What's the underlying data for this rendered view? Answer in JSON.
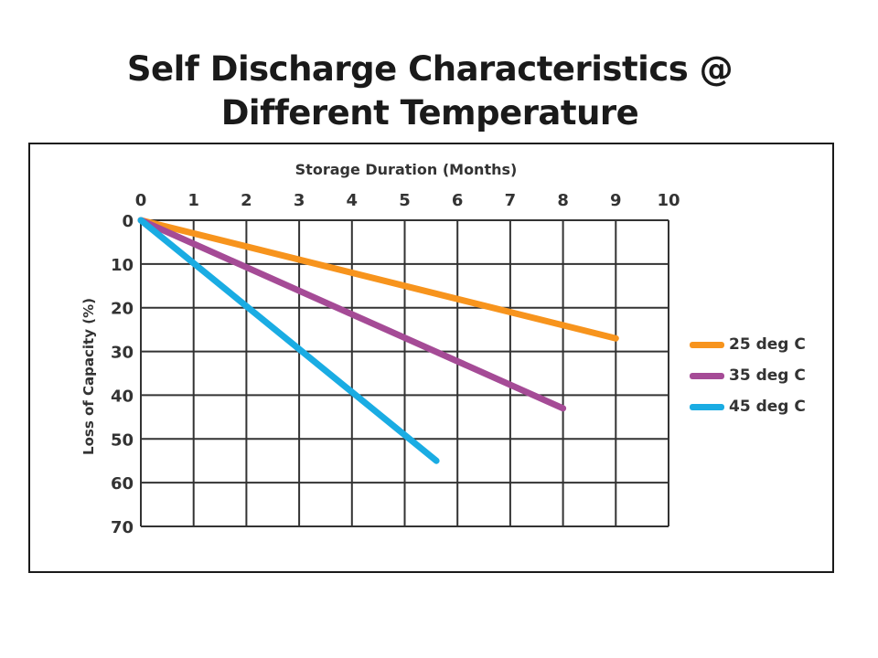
{
  "title_line1": "Self Discharge Characteristics @",
  "title_line2": "Different Temperature",
  "chart_data": {
    "type": "line",
    "title": "Self Discharge Characteristics @ Different Temperature",
    "xlabel": "Storage Duration (Months)",
    "ylabel": "Loss of Capacity (%)",
    "xlim": [
      0,
      10
    ],
    "ylim": [
      0,
      70
    ],
    "x_ticks": [
      0,
      1,
      2,
      3,
      4,
      5,
      6,
      7,
      8,
      9,
      10
    ],
    "y_ticks": [
      0,
      10,
      20,
      30,
      40,
      50,
      60,
      70
    ],
    "y_inverted": true,
    "x_axis_position": "top",
    "grid": true,
    "legend_position": "right",
    "series": [
      {
        "name": "25 deg C",
        "color": "#F7941D",
        "x": [
          0,
          9
        ],
        "y": [
          0,
          27
        ]
      },
      {
        "name": "35 deg C",
        "color": "#A54B96",
        "x": [
          0,
          8
        ],
        "y": [
          0,
          43
        ]
      },
      {
        "name": "45 deg C",
        "color": "#1AACE3",
        "x": [
          0,
          5.6
        ],
        "y": [
          0,
          55
        ]
      }
    ]
  }
}
